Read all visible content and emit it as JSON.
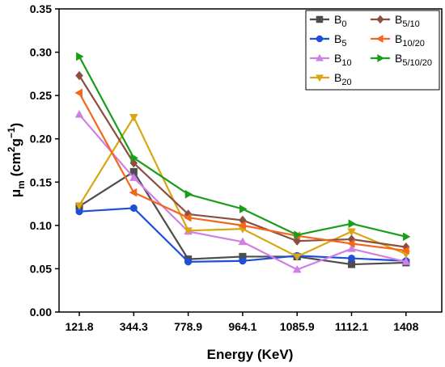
{
  "chart_data": {
    "type": "line",
    "categories": [
      "121.8",
      "344.3",
      "778.9",
      "964.1",
      "1085.9",
      "1112.1",
      "1408"
    ],
    "xlabel": "Energy (KeV)",
    "ylabel": "μm (cm²g⁻¹)",
    "ylabel_parts": {
      "main": "μ",
      "sub": "m",
      "open": " (cm",
      "sup1": "2",
      "mid": "g",
      "sup2": "−1",
      "close": ")"
    },
    "ylim": [
      0.0,
      0.35
    ],
    "yticks": [
      "0.00",
      "0.05",
      "0.10",
      "0.15",
      "0.20",
      "0.25",
      "0.30",
      "0.35"
    ],
    "legend_position": "top-right",
    "series": [
      {
        "name": "B0",
        "base": "B",
        "sub": "0",
        "color": "#4d4d4d",
        "marker": "square",
        "values": [
          0.122,
          0.162,
          0.061,
          0.064,
          0.064,
          0.055,
          0.057
        ]
      },
      {
        "name": "B5",
        "base": "B",
        "sub": "5",
        "color": "#1f4fd8",
        "marker": "circle",
        "values": [
          0.116,
          0.12,
          0.058,
          0.059,
          0.065,
          0.062,
          0.059
        ]
      },
      {
        "name": "B10",
        "base": "B",
        "sub": "10",
        "color": "#cf7fe6",
        "marker": "triangle-up",
        "values": [
          0.228,
          0.155,
          0.093,
          0.081,
          0.049,
          0.073,
          0.058
        ]
      },
      {
        "name": "B20",
        "base": "B",
        "sub": "20",
        "color": "#d9a514",
        "marker": "triangle-down",
        "values": [
          0.123,
          0.225,
          0.094,
          0.096,
          0.064,
          0.093,
          0.067
        ]
      },
      {
        "name": "B5/10",
        "base": "B",
        "sub": "5/10",
        "color": "#8b4f3f",
        "marker": "diamond",
        "values": [
          0.273,
          0.172,
          0.113,
          0.106,
          0.082,
          0.084,
          0.075
        ]
      },
      {
        "name": "B10/20",
        "base": "B",
        "sub": "10/20",
        "color": "#f4671d",
        "marker": "triangle-left",
        "values": [
          0.253,
          0.138,
          0.109,
          0.1,
          0.088,
          0.079,
          0.071
        ]
      },
      {
        "name": "B5/10/20",
        "base": "B",
        "sub": "5/10/20",
        "color": "#1a9e1a",
        "marker": "triangle-right",
        "values": [
          0.295,
          0.178,
          0.136,
          0.119,
          0.089,
          0.102,
          0.087
        ]
      }
    ]
  }
}
